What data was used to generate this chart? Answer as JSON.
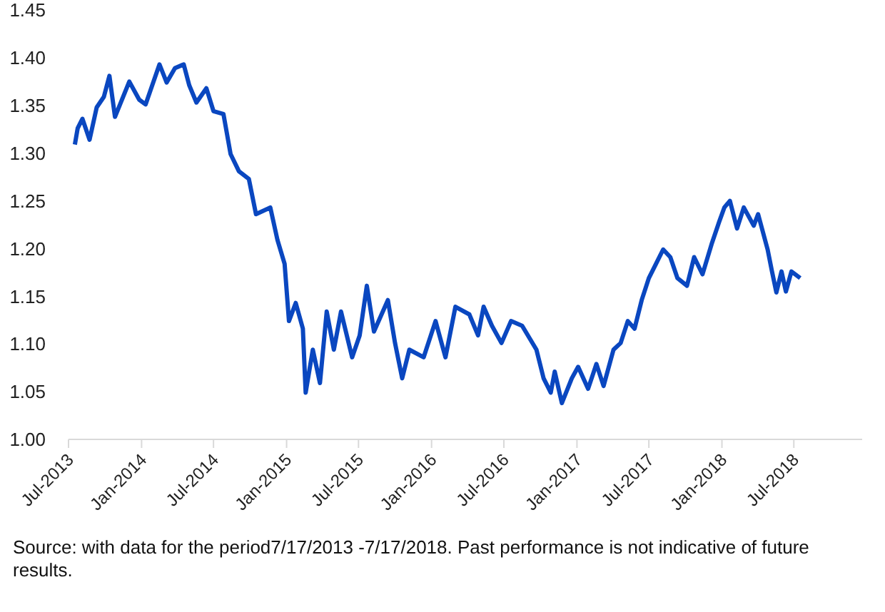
{
  "chart_data": {
    "type": "line",
    "x": [
      "2013-07-17",
      "2013-07-24",
      "2013-08-05",
      "2013-08-23",
      "2013-09-10",
      "2013-09-28",
      "2013-10-12",
      "2013-10-26",
      "2013-12-01",
      "2013-12-26",
      "2014-01-11",
      "2014-02-15",
      "2014-03-05",
      "2014-03-26",
      "2014-04-17",
      "2014-05-01",
      "2014-05-19",
      "2014-06-13",
      "2014-07-01",
      "2014-07-26",
      "2014-08-13",
      "2014-09-03",
      "2014-09-28",
      "2014-10-16",
      "2014-11-21",
      "2014-12-09",
      "2014-12-27",
      "2015-01-07",
      "2015-01-24",
      "2015-02-11",
      "2015-02-18",
      "2015-03-08",
      "2015-03-26",
      "2015-04-12",
      "2015-04-30",
      "2015-05-18",
      "2015-06-15",
      "2015-07-04",
      "2015-07-22",
      "2015-08-09",
      "2015-09-13",
      "2015-10-01",
      "2015-10-19",
      "2015-11-06",
      "2015-12-12",
      "2016-01-11",
      "2016-02-05",
      "2016-03-01",
      "2016-04-05",
      "2016-04-27",
      "2016-05-11",
      "2016-06-01",
      "2016-06-25",
      "2016-07-19",
      "2016-08-16",
      "2016-09-21",
      "2016-10-09",
      "2016-10-27",
      "2016-11-06",
      "2016-11-24",
      "2016-12-19",
      "2017-01-04",
      "2017-01-29",
      "2017-02-19",
      "2017-03-09",
      "2017-04-03",
      "2017-04-21",
      "2017-05-09",
      "2017-05-26",
      "2017-06-13",
      "2017-07-01",
      "2017-07-19",
      "2017-08-06",
      "2017-08-24",
      "2017-09-11",
      "2017-10-05",
      "2017-10-23",
      "2017-11-13",
      "2017-12-07",
      "2017-12-25",
      "2018-01-07",
      "2018-01-21",
      "2018-02-08",
      "2018-02-25",
      "2018-03-22",
      "2018-04-02",
      "2018-04-26",
      "2018-05-07",
      "2018-05-18",
      "2018-05-31",
      "2018-06-11",
      "2018-06-25",
      "2018-07-17"
    ],
    "series": [
      {
        "color": "#0a47c0",
        "values": [
          1.309,
          1.326,
          1.336,
          1.314,
          1.348,
          1.359,
          1.381,
          1.338,
          1.375,
          1.356,
          1.351,
          1.393,
          1.374,
          1.389,
          1.393,
          1.371,
          1.353,
          1.368,
          1.344,
          1.341,
          1.299,
          1.281,
          1.273,
          1.236,
          1.243,
          1.209,
          1.184,
          1.124,
          1.143,
          1.116,
          1.049,
          1.094,
          1.059,
          1.134,
          1.094,
          1.134,
          1.086,
          1.109,
          1.161,
          1.113,
          1.146,
          1.101,
          1.064,
          1.094,
          1.086,
          1.124,
          1.086,
          1.139,
          1.131,
          1.109,
          1.139,
          1.119,
          1.101,
          1.124,
          1.119,
          1.094,
          1.064,
          1.049,
          1.071,
          1.038,
          1.064,
          1.076,
          1.053,
          1.079,
          1.056,
          1.094,
          1.101,
          1.124,
          1.116,
          1.146,
          1.169,
          1.184,
          1.199,
          1.191,
          1.169,
          1.161,
          1.191,
          1.173,
          1.206,
          1.228,
          1.243,
          1.25,
          1.221,
          1.243,
          1.224,
          1.236,
          1.199,
          1.176,
          1.154,
          1.176,
          1.155,
          1.176,
          1.169
        ]
      }
    ],
    "xlim": [
      "2013-07-01",
      "2018-12-20"
    ],
    "xticks": [
      {
        "value": "2013-07-01",
        "label": "Jul-2013"
      },
      {
        "value": "2014-01-01",
        "label": "Jan-2014"
      },
      {
        "value": "2014-07-01",
        "label": "Jul-2014"
      },
      {
        "value": "2015-01-01",
        "label": "Jan-2015"
      },
      {
        "value": "2015-07-01",
        "label": "Jul-2015"
      },
      {
        "value": "2016-01-01",
        "label": "Jan-2016"
      },
      {
        "value": "2016-07-01",
        "label": "Jul-2016"
      },
      {
        "value": "2017-01-01",
        "label": "Jan-2017"
      },
      {
        "value": "2017-07-01",
        "label": "Jul-2017"
      },
      {
        "value": "2018-01-01",
        "label": "Jan-2018"
      },
      {
        "value": "2018-07-01",
        "label": "Jul-2018"
      }
    ],
    "ylim": [
      1.0,
      1.45
    ],
    "yticks": [
      {
        "value": 1.0,
        "label": "1.00"
      },
      {
        "value": 1.05,
        "label": "1.05"
      },
      {
        "value": 1.1,
        "label": "1.10"
      },
      {
        "value": 1.15,
        "label": "1.15"
      },
      {
        "value": 1.2,
        "label": "1.20"
      },
      {
        "value": 1.25,
        "label": "1.25"
      },
      {
        "value": 1.3,
        "label": "1.30"
      },
      {
        "value": 1.35,
        "label": "1.35"
      },
      {
        "value": 1.4,
        "label": "1.40"
      },
      {
        "value": 1.45,
        "label": "1.45"
      }
    ],
    "grid": false,
    "legend": false,
    "marker": "none",
    "line_style": "solid",
    "annotations": [
      "Source: with data for the period7/17/2013 -7/17/2018. Past performance is not indicative of future results."
    ]
  }
}
